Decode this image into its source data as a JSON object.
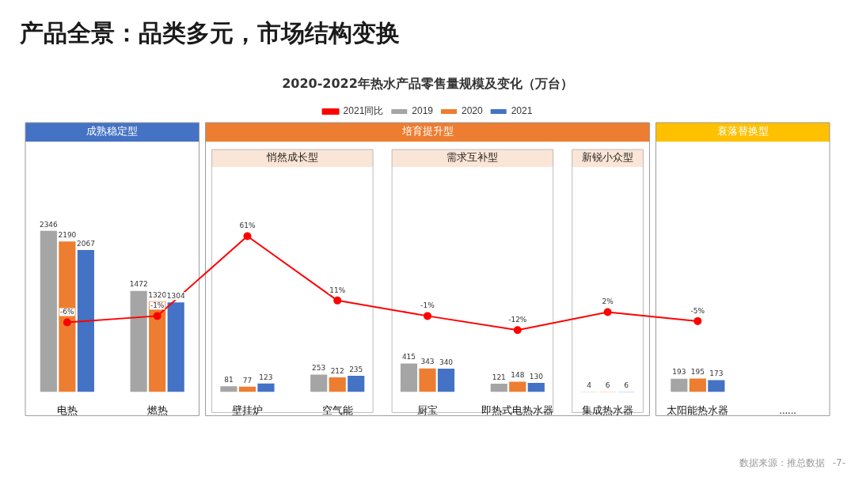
{
  "chart_data": {
    "type": "bar",
    "title": "产品全景：品类多元，市场结构变换",
    "subtitle": "2020-2022年热水产品零售量规模及变化（万台）",
    "categories": [
      "电热",
      "燃热",
      "壁挂炉",
      "空气能",
      "厨宝",
      "即热式电热水器",
      "集成热水器",
      "太阳能热水器",
      "......"
    ],
    "series": [
      {
        "name": "2019",
        "color": "#a5a5a5",
        "values": [
          2346,
          1472,
          81,
          253,
          415,
          121,
          4,
          193,
          null
        ]
      },
      {
        "name": "2020",
        "color": "#ed7d31",
        "values": [
          2190,
          1320,
          77,
          212,
          343,
          148,
          6,
          195,
          null
        ]
      },
      {
        "name": "2021",
        "color": "#4472c4",
        "values": [
          2067,
          1304,
          123,
          235,
          340,
          130,
          6,
          173,
          null
        ]
      },
      {
        "name": "2021同比",
        "type": "line",
        "axis": "y2",
        "color": "#ff0000",
        "marker": "circle",
        "values": [
          -6,
          -1,
          61,
          11,
          -1,
          -12,
          2,
          -5,
          null
        ],
        "value_labels": [
          "-6%",
          "-1%",
          "61%",
          "11%",
          "-1%",
          "-12%",
          "2%",
          "-5%",
          null
        ]
      }
    ],
    "data_labels": true,
    "legend": "top",
    "grid": false,
    "tick_labels": "x",
    "annotations": [
      "成熟稳定型",
      "培育提升型",
      "衰落替换型",
      "悄然成长型",
      "需求互补型",
      "新锐小众型",
      "数据来源：推总数据",
      "-7-"
    ]
  }
}
